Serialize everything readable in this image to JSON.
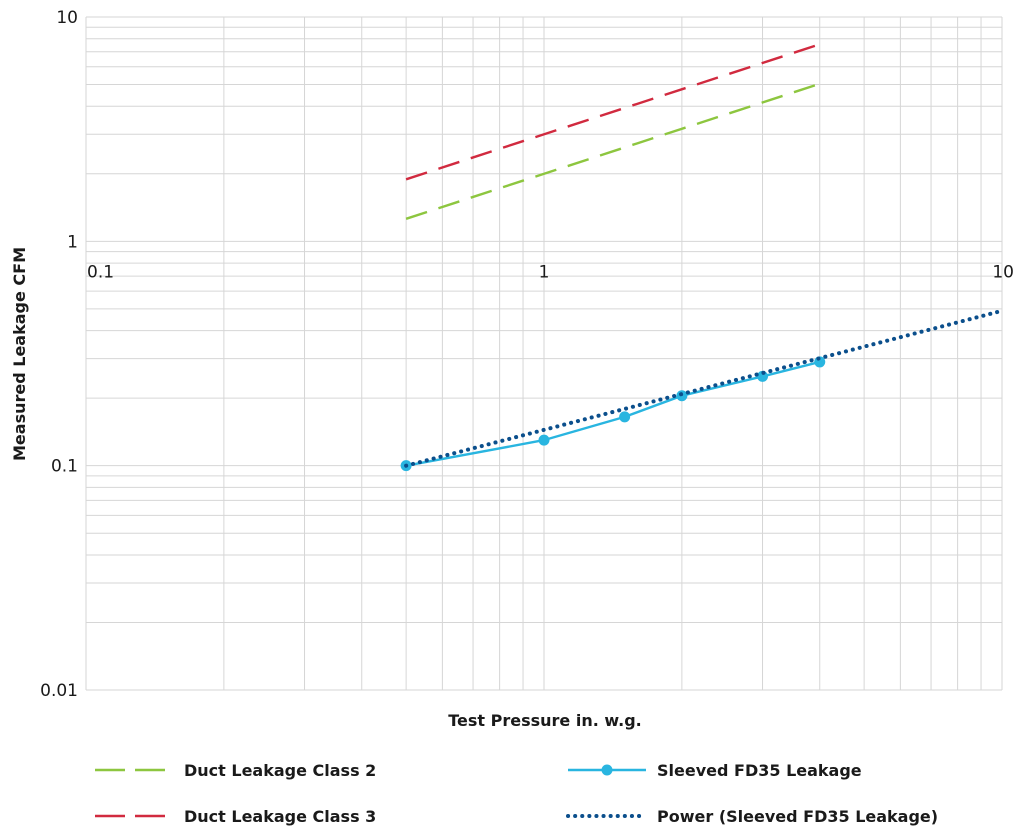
{
  "chart_data": {
    "type": "line",
    "title": "",
    "xlabel": "Test Pressure in. w.g.",
    "ylabel": "Measured Leakage CFM",
    "xscale": "log",
    "yscale": "log",
    "xlim": [
      0.1,
      10
    ],
    "ylim": [
      0.01,
      10
    ],
    "x_ticks": [
      {
        "value": 0.1,
        "label": "0.1"
      },
      {
        "value": 1,
        "label": "1"
      },
      {
        "value": 10,
        "label": "10"
      }
    ],
    "y_ticks": [
      {
        "value": 0.01,
        "label": "0.01"
      },
      {
        "value": 0.1,
        "label": "0.1"
      },
      {
        "value": 1,
        "label": "1"
      },
      {
        "value": 10,
        "label": "10"
      }
    ],
    "grid": true,
    "legend_position": "bottom",
    "series": [
      {
        "name": "Duct Leakage Class 2",
        "style": "dashed",
        "color": "#8dc63f",
        "marker": false,
        "x": [
          0.5,
          4
        ],
        "y": [
          1.26,
          5.04
        ]
      },
      {
        "name": "Duct Leakage Class 3",
        "style": "dashed",
        "color": "#d12a3f",
        "marker": false,
        "x": [
          0.5,
          4
        ],
        "y": [
          1.89,
          7.56
        ]
      },
      {
        "name": "Sleeved FD35 Leakage",
        "style": "solid",
        "color": "#29b5e0",
        "marker": true,
        "x": [
          0.5,
          1,
          1.5,
          2,
          3,
          4
        ],
        "y": [
          0.1,
          0.13,
          0.165,
          0.205,
          0.25,
          0.29
        ]
      },
      {
        "name": "Power (Sleeved FD35 Leakage)",
        "style": "dotted",
        "color": "#0b4f8c",
        "marker": false,
        "x": [
          0.5,
          10
        ],
        "y": [
          0.1,
          0.49
        ]
      }
    ]
  }
}
